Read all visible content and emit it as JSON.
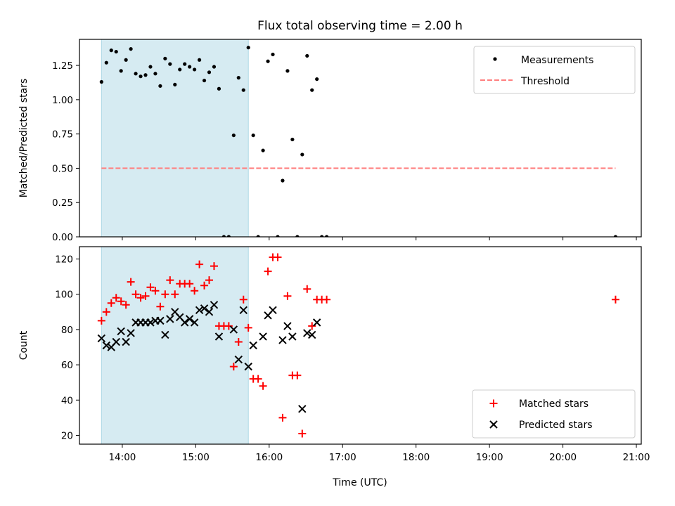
{
  "chart_data": {
    "title": "Flux total observing time = 2.00 h",
    "xlabel": "Time (UTC)",
    "xlim": [
      "13:25",
      "21:04"
    ],
    "xticks": [
      "14:00",
      "15:00",
      "16:00",
      "17:00",
      "18:00",
      "19:00",
      "20:00",
      "21:00"
    ],
    "colors": {
      "span": "#add8e6",
      "measurements": "#000000",
      "threshold": "#ff7f7f",
      "matched": "#ff0000",
      "predicted": "#000000"
    },
    "panels": [
      {
        "type": "scatter",
        "ylabel": "Matched/Predicted stars",
        "ylim": [
          0,
          1.44
        ],
        "yticks": [
          "0.00",
          "0.25",
          "0.50",
          "0.75",
          "1.00",
          "1.25"
        ],
        "highlight_span": [
          "13:43",
          "15:43"
        ],
        "threshold": {
          "name": "Threshold",
          "value": 0.5,
          "x_range": [
            "13:43",
            "20:43"
          ]
        },
        "legend": {
          "loc": "upper right",
          "entries": [
            "Measurements",
            "Threshold"
          ]
        },
        "series": [
          {
            "name": "Measurements",
            "marker": "dot",
            "points": [
              [
                "13:43",
                1.13
              ],
              [
                "13:47",
                1.27
              ],
              [
                "13:51",
                1.36
              ],
              [
                "13:55",
                1.35
              ],
              [
                "13:59",
                1.21
              ],
              [
                "14:03",
                1.29
              ],
              [
                "14:07",
                1.37
              ],
              [
                "14:11",
                1.19
              ],
              [
                "14:15",
                1.17
              ],
              [
                "14:19",
                1.18
              ],
              [
                "14:23",
                1.24
              ],
              [
                "14:27",
                1.19
              ],
              [
                "14:31",
                1.1
              ],
              [
                "14:35",
                1.3
              ],
              [
                "14:39",
                1.26
              ],
              [
                "14:43",
                1.11
              ],
              [
                "14:47",
                1.22
              ],
              [
                "14:51",
                1.26
              ],
              [
                "14:55",
                1.24
              ],
              [
                "14:59",
                1.22
              ],
              [
                "15:03",
                1.29
              ],
              [
                "15:07",
                1.14
              ],
              [
                "15:11",
                1.2
              ],
              [
                "15:15",
                1.24
              ],
              [
                "15:19",
                1.08
              ],
              [
                "15:23",
                0.0
              ],
              [
                "15:27",
                0.0
              ],
              [
                "15:31",
                0.74
              ],
              [
                "15:35",
                1.16
              ],
              [
                "15:39",
                1.07
              ],
              [
                "15:43",
                1.38
              ],
              [
                "15:47",
                0.74
              ],
              [
                "15:51",
                0.0
              ],
              [
                "15:55",
                0.63
              ],
              [
                "15:59",
                1.28
              ],
              [
                "16:03",
                1.33
              ],
              [
                "16:07",
                0.0
              ],
              [
                "16:11",
                0.41
              ],
              [
                "16:15",
                1.21
              ],
              [
                "16:19",
                0.71
              ],
              [
                "16:23",
                0.0
              ],
              [
                "16:27",
                0.6
              ],
              [
                "16:31",
                1.32
              ],
              [
                "16:35",
                1.07
              ],
              [
                "16:39",
                1.15
              ],
              [
                "16:43",
                0.0
              ],
              [
                "16:47",
                0.0
              ],
              [
                "20:43",
                0.0
              ]
            ]
          }
        ]
      },
      {
        "type": "scatter",
        "ylabel": "Count",
        "ylim": [
          15,
          127
        ],
        "yticks": [
          "20",
          "40",
          "60",
          "80",
          "100",
          "120"
        ],
        "highlight_span": [
          "13:43",
          "15:43"
        ],
        "legend": {
          "loc": "lower right",
          "entries": [
            "Matched stars",
            "Predicted stars"
          ]
        },
        "series": [
          {
            "name": "Matched stars",
            "marker": "plus",
            "points": [
              [
                "13:43",
                85
              ],
              [
                "13:47",
                90
              ],
              [
                "13:51",
                95
              ],
              [
                "13:55",
                98
              ],
              [
                "13:59",
                96
              ],
              [
                "14:03",
                94
              ],
              [
                "14:07",
                107
              ],
              [
                "14:11",
                100
              ],
              [
                "14:15",
                98
              ],
              [
                "14:19",
                99
              ],
              [
                "14:23",
                104
              ],
              [
                "14:27",
                102
              ],
              [
                "14:31",
                93
              ],
              [
                "14:35",
                100
              ],
              [
                "14:39",
                108
              ],
              [
                "14:43",
                100
              ],
              [
                "14:47",
                106
              ],
              [
                "14:51",
                106
              ],
              [
                "14:55",
                106
              ],
              [
                "14:59",
                102
              ],
              [
                "15:03",
                117
              ],
              [
                "15:07",
                105
              ],
              [
                "15:11",
                108
              ],
              [
                "15:15",
                116
              ],
              [
                "15:19",
                82
              ],
              [
                "15:23",
                82
              ],
              [
                "15:27",
                82
              ],
              [
                "15:31",
                59
              ],
              [
                "15:35",
                73
              ],
              [
                "15:39",
                97
              ],
              [
                "15:43",
                81
              ],
              [
                "15:47",
                52
              ],
              [
                "15:51",
                52
              ],
              [
                "15:55",
                48
              ],
              [
                "15:59",
                113
              ],
              [
                "16:03",
                121
              ],
              [
                "16:07",
                121
              ],
              [
                "16:11",
                30
              ],
              [
                "16:15",
                99
              ],
              [
                "16:19",
                54
              ],
              [
                "16:23",
                54
              ],
              [
                "16:27",
                21
              ],
              [
                "16:31",
                103
              ],
              [
                "16:35",
                82
              ],
              [
                "16:39",
                97
              ],
              [
                "16:43",
                97
              ],
              [
                "16:47",
                97
              ],
              [
                "20:43",
                97
              ]
            ]
          },
          {
            "name": "Predicted stars",
            "marker": "x",
            "points": [
              [
                "13:43",
                75
              ],
              [
                "13:47",
                71
              ],
              [
                "13:51",
                70
              ],
              [
                "13:55",
                73
              ],
              [
                "13:59",
                79
              ],
              [
                "14:03",
                73
              ],
              [
                "14:07",
                78
              ],
              [
                "14:11",
                84
              ],
              [
                "14:15",
                84
              ],
              [
                "14:19",
                84
              ],
              [
                "14:23",
                84
              ],
              [
                "14:27",
                85
              ],
              [
                "14:31",
                85
              ],
              [
                "14:35",
                77
              ],
              [
                "14:39",
                86
              ],
              [
                "14:43",
                90
              ],
              [
                "14:47",
                87
              ],
              [
                "14:51",
                84
              ],
              [
                "14:55",
                86
              ],
              [
                "14:59",
                84
              ],
              [
                "15:03",
                91
              ],
              [
                "15:07",
                92
              ],
              [
                "15:11",
                90
              ],
              [
                "15:15",
                94
              ],
              [
                "15:19",
                76
              ],
              [
                "15:31",
                80
              ],
              [
                "15:35",
                63
              ],
              [
                "15:39",
                91
              ],
              [
                "15:43",
                59
              ],
              [
                "15:47",
                71
              ],
              [
                "15:55",
                76
              ],
              [
                "15:59",
                88
              ],
              [
                "16:03",
                91
              ],
              [
                "16:11",
                74
              ],
              [
                "16:15",
                82
              ],
              [
                "16:19",
                76
              ],
              [
                "16:27",
                35
              ],
              [
                "16:31",
                78
              ],
              [
                "16:35",
                77
              ],
              [
                "16:39",
                84
              ]
            ]
          }
        ]
      }
    ]
  }
}
